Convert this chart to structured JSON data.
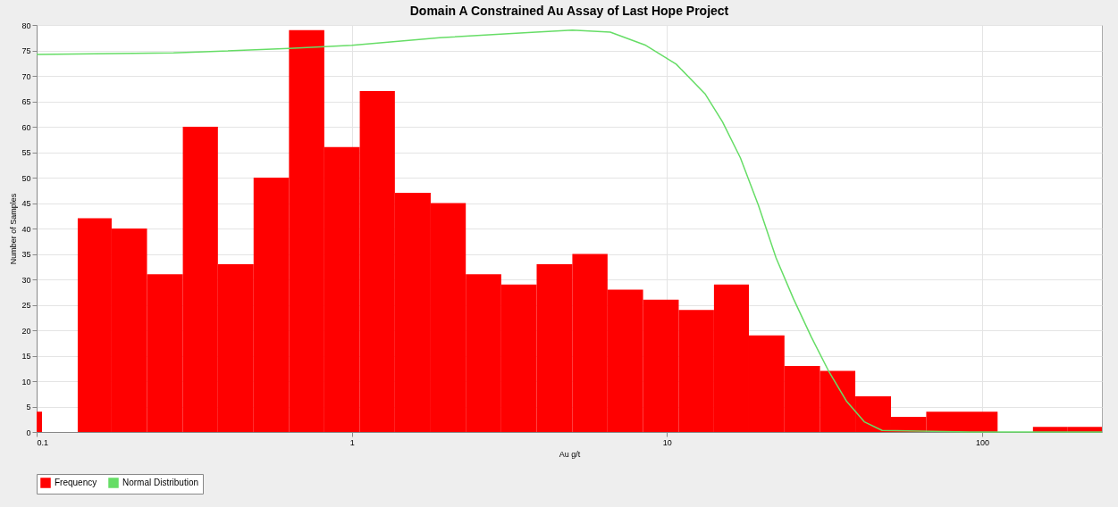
{
  "chart_data": {
    "type": "histogram",
    "title": "Domain A Constrained Au Assay of Last Hope Project",
    "xlabel": "Au g/t",
    "ylabel": "Number of Samples",
    "bins": [
      0.1,
      0.104,
      0.135,
      0.173,
      0.224,
      0.291,
      0.376,
      0.488,
      0.632,
      0.818,
      1.06,
      1.37,
      1.78,
      2.3,
      2.98,
      3.86,
      5.01,
      6.48,
      8.4,
      10.9,
      14.1,
      18.2,
      23.6,
      30.6,
      39.6,
      51.4,
      66.5,
      86.1,
      112,
      145,
      187,
      240
    ],
    "series": [
      {
        "name": "Frequency",
        "color": "#ff0000",
        "values": [
          4,
          0,
          42,
          40,
          31,
          60,
          33,
          50,
          79,
          56,
          67,
          47,
          45,
          31,
          29,
          33,
          35,
          28,
          26,
          24,
          29,
          19,
          13,
          12,
          7,
          3,
          4,
          4,
          0,
          1,
          1
        ]
      },
      {
        "name": "Normal Distribution",
        "type": "line",
        "color": "#66dd66",
        "x": [
          0.1,
          0.272,
          0.632,
          1.0,
          1.9,
          3.62,
          5.01,
          6.61,
          8.57,
          10.7,
          13.2,
          15.0,
          17.1,
          19.5,
          22.2,
          25.2,
          28.7,
          32.7,
          37.2,
          42.3,
          48.2,
          91.8,
          240
        ],
        "values": [
          74.2,
          74.5,
          75.4,
          76,
          77.5,
          78.5,
          79,
          78.6,
          76,
          72.3,
          66.5,
          61,
          53.9,
          44.6,
          34.2,
          26.2,
          18.7,
          11.8,
          6,
          2,
          0.3,
          0,
          0
        ]
      }
    ],
    "xlim": [
      0.1,
      240
    ],
    "ylim": [
      0,
      80
    ],
    "xticks": [
      0.1,
      1,
      10,
      100
    ],
    "yticks": [
      0,
      5,
      10,
      15,
      20,
      25,
      30,
      35,
      40,
      45,
      50,
      55,
      60,
      65,
      70,
      75,
      80
    ],
    "log": "x",
    "grid": true,
    "legend": "bottom"
  }
}
